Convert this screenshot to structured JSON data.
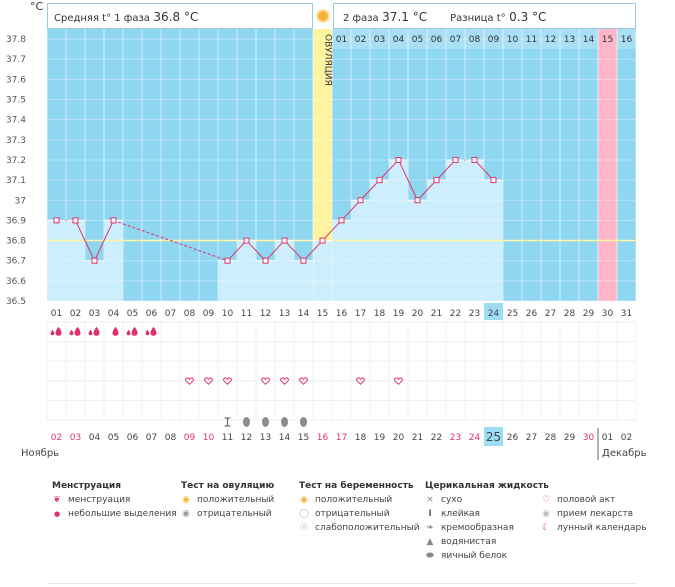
{
  "header": {
    "unit": "°C",
    "phase1_label": "Средняя t° 1 фаза",
    "phase1_value": "36.8 °C",
    "phase2_label": "2 фаза",
    "phase2_value": "37.1 °C",
    "diff_label": "Разница t°",
    "diff_value": "0.3 °C"
  },
  "colors": {
    "bg": "#8fd6f1",
    "bar": "#cceefd",
    "line": "#e0326a",
    "ovulation": "#fff3a0",
    "period_end": "#ffb6c8",
    "highlight": "#9cdcf5",
    "grid": "#b8e3f3"
  },
  "chart_data": {
    "type": "line",
    "title": "",
    "ylabel": "°C",
    "ylim": [
      36.5,
      37.85
    ],
    "yticks": [
      "37.8",
      "37.7",
      "37.6",
      "37.5",
      "37.4",
      "37.3",
      "37.2",
      "37.1",
      "37",
      "36.9",
      "36.8",
      "36.7",
      "36.6",
      "36.5"
    ],
    "cycle_days": [
      "01",
      "02",
      "03",
      "04",
      "05",
      "06",
      "07",
      "08",
      "09",
      "10",
      "11",
      "12",
      "13",
      "14",
      "15",
      "16",
      "17",
      "18",
      "19",
      "20",
      "21",
      "22",
      "23",
      "24",
      "25",
      "26",
      "27",
      "28",
      "29",
      "30",
      "31"
    ],
    "temperatures": [
      36.9,
      36.9,
      36.7,
      36.9,
      null,
      null,
      null,
      null,
      null,
      36.7,
      36.8,
      36.7,
      36.8,
      36.7,
      36.8,
      36.9,
      37.0,
      37.1,
      37.2,
      37.0,
      37.1,
      37.2,
      37.2,
      37.1,
      null,
      null,
      null,
      null,
      null,
      null,
      null
    ],
    "dashed_gap": [
      4,
      10
    ],
    "coverline": 36.8,
    "ovulation_day": 15,
    "ovulation_label": "ОВУЛЯЦИЯ",
    "luteal_days": [
      "01",
      "02",
      "03",
      "04",
      "05",
      "06",
      "07",
      "08",
      "09",
      "10",
      "11",
      "12",
      "13",
      "14",
      "15",
      "16"
    ],
    "luteal_start_day": 16,
    "highlight_luteal_day": 15,
    "current_day": 24
  },
  "symbols": {
    "menstruation_days": [
      1,
      2,
      3,
      4,
      5,
      6
    ],
    "menstruation_small_days": [
      1,
      2,
      3,
      5,
      6
    ],
    "intercourse_days": [
      8,
      9,
      10,
      12,
      13,
      14,
      17,
      19
    ],
    "sticky_days": [
      10
    ],
    "creamy_days": [
      11,
      12,
      13,
      14
    ]
  },
  "calendar": {
    "dates": [
      "02",
      "03",
      "04",
      "05",
      "06",
      "07",
      "08",
      "09",
      "10",
      "11",
      "12",
      "13",
      "14",
      "15",
      "16",
      "17",
      "18",
      "19",
      "20",
      "21",
      "22",
      "23",
      "24",
      "25",
      "26",
      "27",
      "28",
      "29",
      "30",
      "01",
      "02"
    ],
    "red_indices": [
      0,
      1,
      7,
      8,
      14,
      15,
      21,
      22,
      28
    ],
    "today_index": 23,
    "month_start": "Ноябрь",
    "month_next": "Декабрь"
  },
  "legend": {
    "menstruation": {
      "title": "Менструация",
      "items": [
        "менструация",
        "небольшие выделения"
      ]
    },
    "ovulation_test": {
      "title": "Тест на овуляцию",
      "items": [
        "положительный",
        "отрицательный"
      ]
    },
    "pregnancy_test": {
      "title": "Тест на беременность",
      "items": [
        "положительный",
        "отрицательный",
        "слабоположительный"
      ]
    },
    "cervical": {
      "title": "Церикальная жидкость",
      "items": [
        "сухо",
        "клейкая",
        "кремообразная",
        "водянистая",
        "яичный белок"
      ]
    },
    "other": {
      "items": [
        "половой акт",
        "прием лекарств",
        "лунный календарь"
      ]
    }
  }
}
